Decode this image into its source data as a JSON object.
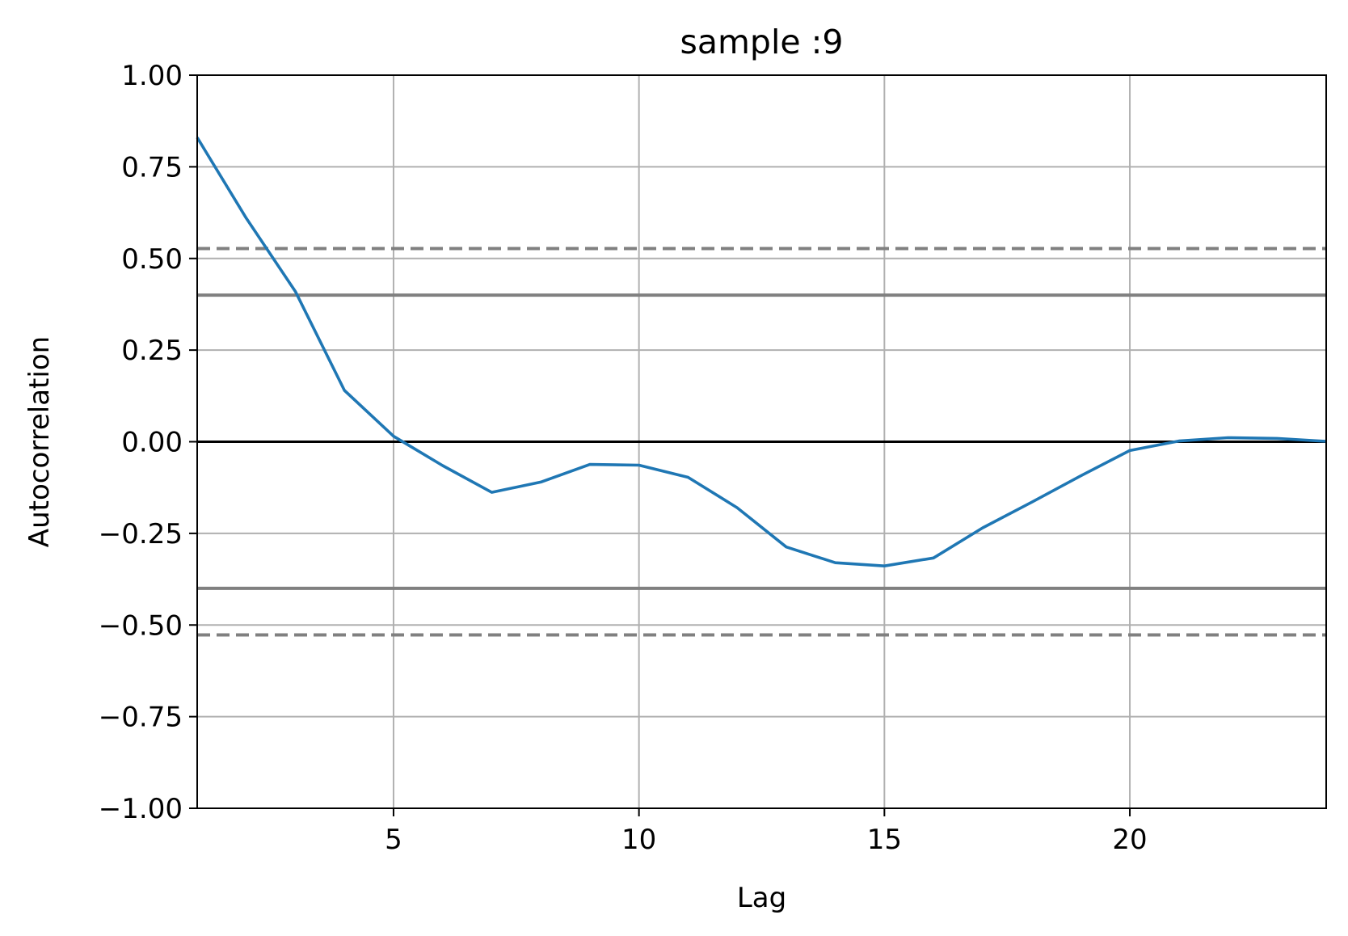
{
  "chart_data": {
    "type": "line",
    "title": "sample :9",
    "xlabel": "Lag",
    "ylabel": "Autocorrelation",
    "xlim": [
      1,
      24
    ],
    "ylim": [
      -1.0,
      1.0
    ],
    "x_ticks": [
      5,
      10,
      15,
      20
    ],
    "x_tick_labels": [
      "5",
      "10",
      "15",
      "20"
    ],
    "y_ticks": [
      -1.0,
      -0.75,
      -0.5,
      -0.25,
      0.0,
      0.25,
      0.5,
      0.75,
      1.0
    ],
    "y_tick_labels": [
      "−1.00",
      "−0.75",
      "−0.50",
      "−0.25",
      "0.00",
      "0.25",
      "0.50",
      "0.75",
      "1.00"
    ],
    "grid": true,
    "series": [
      {
        "color": "#1f77b4",
        "x": [
          1,
          2,
          3,
          4,
          5,
          6,
          7,
          8,
          9,
          10,
          11,
          12,
          13,
          14,
          15,
          16,
          17,
          18,
          19,
          20,
          21,
          22,
          23,
          24
        ],
        "values": [
          0.83,
          0.61,
          0.41,
          0.14,
          0.015,
          -0.065,
          -0.138,
          -0.11,
          -0.062,
          -0.064,
          -0.097,
          -0.18,
          -0.287,
          -0.33,
          -0.339,
          -0.317,
          -0.235,
          -0.165,
          -0.093,
          -0.024,
          0.002,
          0.011,
          0.009,
          0.001
        ]
      }
    ],
    "reference_lines": [
      {
        "y": 0.0,
        "style": "solid",
        "color": "#000000"
      },
      {
        "y": 0.4,
        "style": "solid",
        "color": "#808080"
      },
      {
        "y": -0.4,
        "style": "solid",
        "color": "#808080"
      },
      {
        "y": 0.527,
        "style": "dashed",
        "color": "#808080"
      },
      {
        "y": -0.527,
        "style": "dashed",
        "color": "#808080"
      }
    ],
    "grid_color": "#b0b0b0"
  }
}
